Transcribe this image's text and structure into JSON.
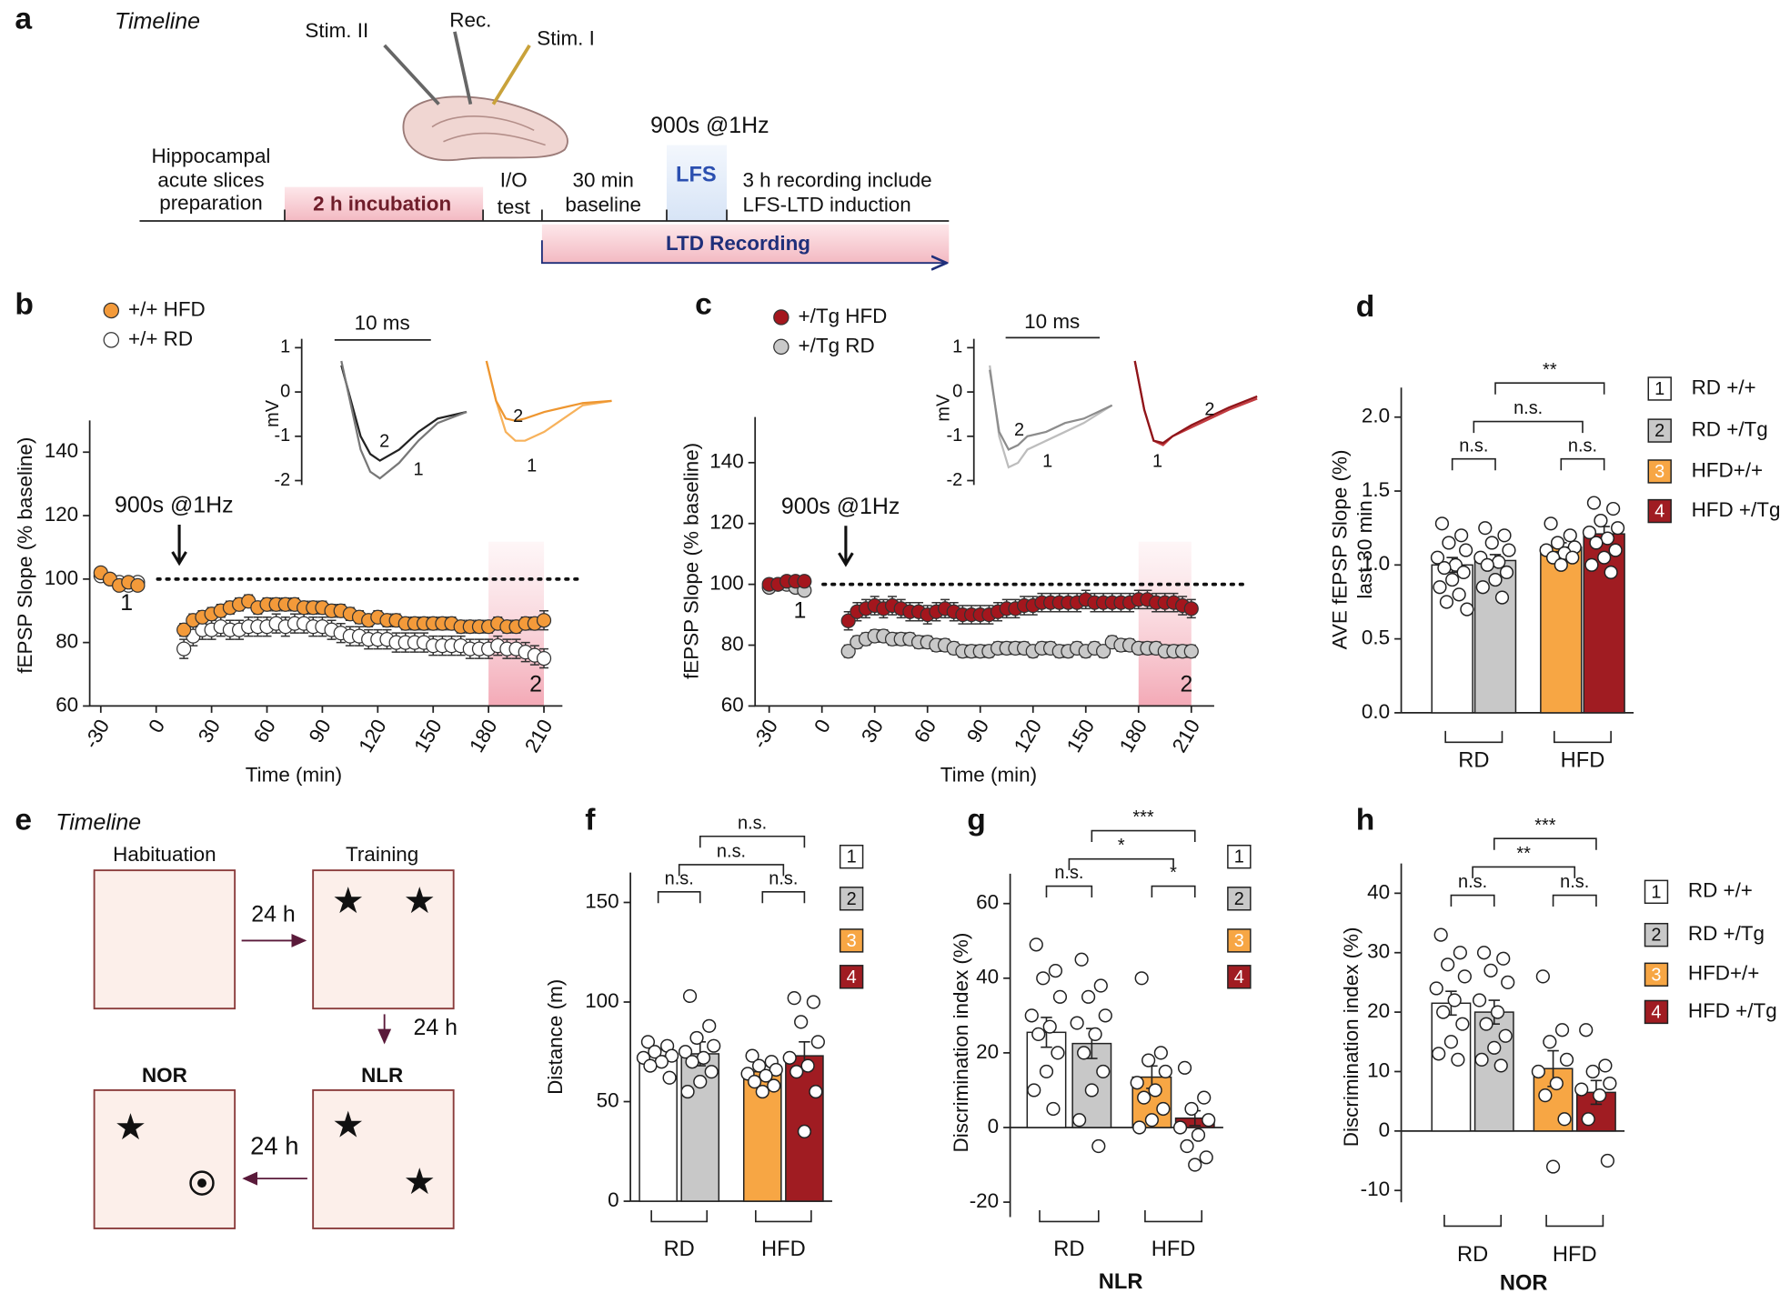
{
  "panel_a": {
    "label": "a",
    "title": "Timeline",
    "electrodes": [
      "Stim. II",
      "Rec.",
      "Stim. I"
    ],
    "stimulus": "900s @1Hz",
    "lfs": "LFS",
    "steps": [
      [
        "Hippocampal",
        "acute slices",
        "preparation"
      ],
      [
        "2 h incubation"
      ],
      [
        "I/O",
        "test"
      ],
      [
        "30 min",
        "baseline"
      ],
      [
        "3 h recording include",
        "LFS-LTD induction"
      ]
    ],
    "recording": "LTD Recording"
  },
  "panel_e": {
    "label": "e",
    "title": "Timeline",
    "stages": [
      "Habituation",
      "Training",
      "NLR",
      "NOR"
    ],
    "intervals": [
      "24 h",
      "24 h",
      "24 h"
    ]
  },
  "chart_data": [
    {
      "type": "line",
      "panel": "b",
      "xlabel": "Time (min)",
      "ylabel": "fEPSP Slope (% baseline)",
      "x": [
        -30,
        -25,
        -20,
        -15,
        -10,
        15,
        20,
        25,
        30,
        35,
        40,
        45,
        50,
        55,
        60,
        65,
        70,
        75,
        80,
        85,
        90,
        95,
        100,
        105,
        110,
        115,
        120,
        125,
        130,
        135,
        140,
        145,
        150,
        155,
        160,
        165,
        170,
        175,
        180,
        185,
        190,
        195,
        200,
        205,
        210
      ],
      "xlim": [
        -36,
        220
      ],
      "xticks": [
        -30,
        0,
        30,
        60,
        90,
        120,
        150,
        180,
        210
      ],
      "ylim": [
        60,
        150
      ],
      "yticks": [
        60,
        80,
        100,
        120,
        140
      ],
      "reference_line": 100,
      "highlight_range": [
        180,
        210
      ],
      "annotations": [
        "900s @1Hz",
        "1",
        "2"
      ],
      "series": [
        {
          "name": "+/+ HFD",
          "color": "#f39a3a",
          "values": [
            102,
            100,
            98,
            99,
            98,
            84,
            87,
            88,
            89,
            90,
            91,
            92,
            93,
            91,
            92,
            92,
            92,
            92,
            91,
            91,
            91,
            90,
            90,
            89,
            88,
            87,
            88,
            87,
            87,
            86,
            86,
            86,
            86,
            86,
            86,
            85,
            85,
            85,
            85,
            86,
            85,
            85,
            86,
            86,
            87
          ],
          "errors": [
            1,
            1,
            1,
            1,
            1,
            2,
            2,
            2,
            2,
            2,
            2,
            2,
            2,
            2,
            2,
            2,
            2,
            2,
            2,
            2,
            2,
            2,
            2,
            2,
            2,
            2,
            2,
            2,
            2,
            2,
            2,
            2,
            2,
            2,
            2,
            2,
            2,
            2,
            2,
            2,
            2,
            2,
            2,
            2,
            3
          ]
        },
        {
          "name": "+/+ RD",
          "color": "#ffffff",
          "values": [
            101,
            100,
            99,
            98,
            99,
            78,
            82,
            84,
            84,
            85,
            84,
            84,
            85,
            85,
            85,
            86,
            85,
            86,
            86,
            85,
            85,
            84,
            83,
            82,
            82,
            81,
            81,
            81,
            80,
            80,
            80,
            80,
            79,
            79,
            79,
            79,
            78,
            78,
            78,
            79,
            78,
            78,
            77,
            76,
            75
          ],
          "errors": [
            1,
            1,
            1,
            1,
            1,
            3,
            3,
            3,
            3,
            3,
            3,
            3,
            3,
            3,
            3,
            3,
            3,
            3,
            3,
            3,
            3,
            3,
            3,
            3,
            3,
            3,
            3,
            3,
            3,
            3,
            3,
            3,
            3,
            3,
            3,
            3,
            3,
            3,
            3,
            3,
            3,
            3,
            3,
            3,
            3
          ]
        }
      ]
    },
    {
      "type": "line",
      "ylabel": "mV",
      "ylim": [
        -2.1,
        1.2
      ],
      "yticks": [
        1,
        0,
        -1,
        -2
      ],
      "scale_bar": {
        "value": 10,
        "label": "10 ms"
      },
      "x": [
        0,
        1,
        2,
        3,
        4,
        6,
        8,
        10,
        13
      ],
      "series": [
        {
          "label": "2",
          "color": "#222222",
          "values": [
            0.6,
            -0.2,
            -1.0,
            -1.4,
            -1.55,
            -1.3,
            -0.9,
            -0.6,
            -0.45
          ]
        },
        {
          "label": "1",
          "color": "#777777",
          "values": [
            0.7,
            -0.3,
            -1.3,
            -1.8,
            -1.95,
            -1.6,
            -1.1,
            -0.7,
            -0.45
          ]
        },
        {
          "label": "1",
          "color": "#f7b25c",
          "values": [
            0.7,
            -0.2,
            -0.9,
            -1.1,
            -1.1,
            -0.9,
            -0.6,
            -0.3,
            -0.2
          ]
        },
        {
          "label": "2",
          "color": "#ee9630",
          "values": [
            0.7,
            -0.2,
            -0.6,
            -0.65,
            -0.6,
            -0.45,
            -0.35,
            -0.25,
            -0.2
          ]
        }
      ]
    },
    {
      "type": "line",
      "panel": "c",
      "xlabel": "Time (min)",
      "ylabel": "fEPSP Slope (% baseline)",
      "x": [
        -30,
        -25,
        -20,
        -15,
        -10,
        15,
        20,
        25,
        30,
        35,
        40,
        45,
        50,
        55,
        60,
        65,
        70,
        75,
        80,
        85,
        90,
        95,
        100,
        105,
        110,
        115,
        120,
        125,
        130,
        135,
        140,
        145,
        150,
        155,
        160,
        165,
        170,
        175,
        180,
        185,
        190,
        195,
        200,
        205,
        210
      ],
      "xlim": [
        -38,
        223
      ],
      "xticks": [
        -30,
        0,
        30,
        60,
        90,
        120,
        150,
        180,
        210
      ],
      "ylim": [
        60,
        155
      ],
      "yticks": [
        60,
        80,
        100,
        120,
        140
      ],
      "reference_line": 100,
      "highlight_range": [
        180,
        210
      ],
      "annotations": [
        "900s @1Hz",
        "1",
        "2"
      ],
      "series": [
        {
          "name": "+/Tg HFD",
          "color": "#a4161d",
          "values": [
            100,
            100,
            101,
            101,
            101,
            88,
            91,
            92,
            93,
            92,
            93,
            92,
            91,
            91,
            90,
            91,
            92,
            91,
            90,
            90,
            90,
            90,
            91,
            92,
            92,
            93,
            93,
            94,
            94,
            94,
            94,
            94,
            95,
            94,
            94,
            94,
            94,
            94,
            95,
            95,
            94,
            94,
            94,
            93,
            92
          ],
          "errors": [
            1,
            1,
            1,
            1,
            1,
            3,
            3,
            3,
            3,
            3,
            3,
            3,
            3,
            3,
            3,
            3,
            3,
            3,
            3,
            3,
            3,
            3,
            3,
            3,
            3,
            3,
            3,
            3,
            3,
            3,
            3,
            3,
            3,
            3,
            3,
            3,
            3,
            3,
            3,
            3,
            3,
            3,
            3,
            3,
            3
          ]
        },
        {
          "name": "+/Tg RD",
          "color": "#c9c9c9",
          "values": [
            99,
            100,
            100,
            99,
            98,
            78,
            81,
            82,
            83,
            83,
            82,
            82,
            82,
            81,
            81,
            80,
            80,
            79,
            78,
            78,
            78,
            78,
            79,
            79,
            79,
            79,
            78,
            79,
            79,
            78,
            78,
            79,
            78,
            79,
            78,
            81,
            80,
            80,
            79,
            79,
            79,
            78,
            78,
            78,
            78
          ],
          "errors": [
            1,
            1,
            1,
            1,
            1,
            2,
            2,
            2,
            2,
            2,
            2,
            2,
            2,
            2,
            2,
            2,
            2,
            2,
            2,
            2,
            2,
            2,
            2,
            2,
            2,
            2,
            2,
            2,
            2,
            2,
            2,
            2,
            2,
            2,
            2,
            2,
            2,
            2,
            2,
            2,
            2,
            2,
            2,
            2,
            2
          ]
        }
      ]
    },
    {
      "type": "line",
      "ylabel": "mV",
      "ylim": [
        -2.1,
        1.2
      ],
      "yticks": [
        1,
        0,
        -1,
        -2
      ],
      "scale_bar": {
        "value": 10,
        "label": "10 ms"
      },
      "x": [
        0,
        1,
        2,
        3,
        4,
        6,
        8,
        10,
        13
      ],
      "series": [
        {
          "label": "1",
          "color": "#bdbdbd",
          "values": [
            0.6,
            -1.0,
            -1.7,
            -1.6,
            -1.3,
            -1.1,
            -0.9,
            -0.7,
            -0.3
          ]
        },
        {
          "label": "2",
          "color": "#8c8c8c",
          "values": [
            0.5,
            -0.9,
            -1.3,
            -1.2,
            -1.0,
            -0.9,
            -0.7,
            -0.6,
            -0.3
          ]
        },
        {
          "label": "1",
          "color": "#c23a3f",
          "values": [
            0.7,
            -0.4,
            -1.1,
            -1.2,
            -1.0,
            -0.8,
            -0.6,
            -0.4,
            -0.15
          ]
        },
        {
          "label": "2",
          "color": "#8f1419",
          "values": [
            0.7,
            -0.4,
            -1.1,
            -1.15,
            -1.0,
            -0.75,
            -0.55,
            -0.35,
            -0.1
          ]
        }
      ]
    },
    {
      "type": "bar",
      "panel": "d",
      "ylabel": [
        "AVE fEPSP Slope (%)",
        "last 30 min"
      ],
      "groups": [
        "RD",
        "HFD"
      ],
      "ylim": [
        0,
        2.2
      ],
      "yticks": [
        {
          "value": 0,
          "label": "0.0"
        },
        0.5,
        {
          "value": 1,
          "label": "1.0"
        },
        1.5,
        {
          "value": 2,
          "label": "2.0"
        }
      ],
      "annotations": [
        "n.s.",
        "n.s.",
        "n.s.",
        "**"
      ],
      "bars": [
        {
          "key": "1",
          "name": "RD +/+",
          "color": "#ffffff",
          "value": 1.0,
          "error": 0.05,
          "points": [
            1.28,
            1.2,
            1.15,
            1.1,
            1.05,
            1.0,
            0.98,
            0.95,
            0.9,
            0.85,
            0.8,
            0.75,
            0.7
          ]
        },
        {
          "key": "2",
          "name": "RD +/Tg",
          "color": "#c8c8c8",
          "value": 1.03,
          "error": 0.04,
          "points": [
            1.25,
            1.2,
            1.15,
            1.1,
            1.05,
            1.02,
            1.0,
            0.95,
            0.9,
            0.85,
            0.78
          ]
        },
        {
          "key": "3",
          "name": "HFD+/+",
          "color": "#f7a644",
          "value": 1.12,
          "error": 0.03,
          "points": [
            1.28,
            1.2,
            1.15,
            1.12,
            1.1,
            1.08,
            1.05,
            1.05,
            1.0
          ]
        },
        {
          "key": "4",
          "name": "HFD +/Tg",
          "color": "#a01c22",
          "value": 1.21,
          "error": 0.05,
          "points": [
            1.42,
            1.38,
            1.3,
            1.25,
            1.22,
            1.18,
            1.15,
            1.1,
            1.05,
            1.0,
            0.95
          ]
        }
      ]
    },
    {
      "type": "bar",
      "panel": "f",
      "ylabel": [
        "Distance (m)"
      ],
      "groups": [
        "RD",
        "HFD"
      ],
      "ylim": [
        0,
        165
      ],
      "yticks": [
        0,
        50,
        100,
        150
      ],
      "annotations": [
        "n.s.",
        "n.s.",
        "n.s.",
        "n.s."
      ],
      "bars": [
        {
          "key": "1",
          "color": "#ffffff",
          "value": 73,
          "error": 3,
          "points": [
            80,
            78,
            75,
            73,
            72,
            70,
            68,
            62
          ]
        },
        {
          "key": "2",
          "color": "#c8c8c8",
          "value": 74,
          "error": 6,
          "points": [
            103,
            88,
            82,
            78,
            75,
            72,
            70,
            65,
            60,
            55
          ]
        },
        {
          "key": "3",
          "color": "#f7a644",
          "value": 65,
          "error": 3,
          "points": [
            73,
            70,
            68,
            66,
            64,
            63,
            60,
            58,
            55
          ]
        },
        {
          "key": "4",
          "color": "#a01c22",
          "value": 73,
          "error": 7,
          "points": [
            102,
            100,
            90,
            80,
            72,
            68,
            65,
            55,
            35
          ]
        }
      ]
    },
    {
      "type": "bar",
      "panel": "g",
      "ylabel": [
        "Discrimination index (%)"
      ],
      "xlabel": "NLR",
      "groups": [
        "RD",
        "HFD"
      ],
      "ylim": [
        -24,
        68
      ],
      "yticks": [
        -20,
        0,
        20,
        40,
        60
      ],
      "annotations": [
        "n.s.",
        "*",
        "*",
        "***"
      ],
      "bars": [
        {
          "key": "1",
          "color": "#ffffff",
          "value": 25.5,
          "error": 4,
          "points": [
            49,
            42,
            40,
            35,
            30,
            27,
            25,
            20,
            15,
            10,
            5
          ]
        },
        {
          "key": "2",
          "color": "#c8c8c8",
          "value": 22.5,
          "error": 4,
          "points": [
            45,
            38,
            35,
            30,
            28,
            25,
            20,
            15,
            10,
            2,
            -5
          ]
        },
        {
          "key": "3",
          "color": "#f7a644",
          "value": 13.5,
          "error": 3,
          "points": [
            40,
            20,
            18,
            15,
            12,
            10,
            8,
            5,
            2,
            0
          ]
        },
        {
          "key": "4",
          "color": "#a01c22",
          "value": 2.5,
          "error": 2,
          "points": [
            16,
            8,
            5,
            2,
            0,
            -2,
            -5,
            -8,
            -10
          ]
        }
      ]
    },
    {
      "type": "bar",
      "panel": "h",
      "ylabel": [
        "Discrimination index (%)"
      ],
      "xlabel": "NOR",
      "groups": [
        "RD",
        "HFD"
      ],
      "ylim": [
        -12,
        45
      ],
      "yticks": [
        -10,
        0,
        10,
        20,
        30,
        40
      ],
      "annotations": [
        "n.s.",
        "n.s.",
        "**",
        "***"
      ],
      "bars": [
        {
          "key": "1",
          "name": "RD +/+",
          "color": "#ffffff",
          "value": 21.5,
          "error": 2,
          "points": [
            33,
            30,
            28,
            26,
            24,
            22,
            20,
            18,
            15,
            13,
            12
          ]
        },
        {
          "key": "2",
          "name": "RD +/Tg",
          "color": "#c8c8c8",
          "value": 20,
          "error": 2,
          "points": [
            30,
            29,
            27,
            25,
            22,
            20,
            18,
            16,
            14,
            12,
            11
          ]
        },
        {
          "key": "3",
          "name": "HFD+/+",
          "color": "#f7a644",
          "value": 10.5,
          "error": 3,
          "points": [
            26,
            17,
            15,
            12,
            10,
            8,
            6,
            2,
            -6
          ]
        },
        {
          "key": "4",
          "name": "HFD +/Tg",
          "color": "#a01c22",
          "value": 6.5,
          "error": 2,
          "points": [
            17,
            11,
            10,
            8,
            7,
            6,
            2,
            -5
          ]
        }
      ]
    }
  ]
}
